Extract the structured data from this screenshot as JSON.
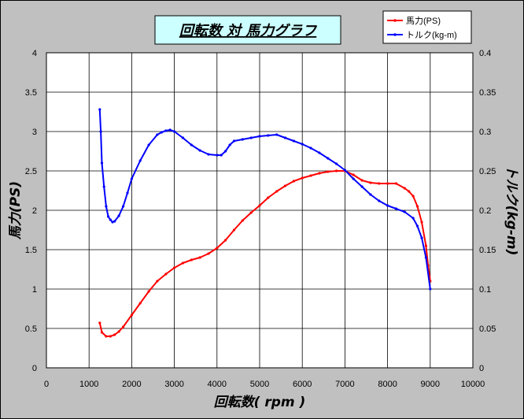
{
  "chart_data": {
    "type": "line",
    "title": "回転数 対 馬力グラフ",
    "xlabel": "回転数( rpm )",
    "ylabel": "馬力(PS)",
    "y2label": "トルク(kg-m)",
    "xlim": [
      0,
      10000
    ],
    "ylim": [
      0,
      4
    ],
    "y2lim": [
      0,
      0.4
    ],
    "xticks": [
      "0",
      "1000",
      "2000",
      "3000",
      "4000",
      "5000",
      "6000",
      "7000",
      "8000",
      "9000",
      "10000"
    ],
    "yticks": [
      "0",
      "0.5",
      "1",
      "1.5",
      "2",
      "2.5",
      "3",
      "3.5",
      "4"
    ],
    "y2ticks": [
      "0",
      "0.05",
      "0.1",
      "0.15",
      "0.2",
      "0.25",
      "0.3",
      "0.35",
      "0.4"
    ],
    "grid": true,
    "legend": "top-right",
    "series": [
      {
        "name": "馬力(PS)",
        "axis": "left",
        "color": "#ff0000",
        "x": [
          1250,
          1300,
          1400,
          1500,
          1600,
          1700,
          1800,
          2000,
          2200,
          2400,
          2600,
          2800,
          3000,
          3200,
          3400,
          3600,
          3800,
          4000,
          4200,
          4400,
          4600,
          4800,
          5000,
          5200,
          5400,
          5600,
          5800,
          6000,
          6200,
          6400,
          6600,
          6800,
          7000,
          7200,
          7400,
          7600,
          7800,
          8000,
          8200,
          8400,
          8500,
          8600,
          8700,
          8800,
          8900,
          8950,
          9000
        ],
        "y": [
          0.57,
          0.45,
          0.4,
          0.4,
          0.42,
          0.46,
          0.52,
          0.67,
          0.82,
          0.97,
          1.1,
          1.19,
          1.27,
          1.33,
          1.37,
          1.4,
          1.45,
          1.52,
          1.62,
          1.75,
          1.87,
          1.97,
          2.06,
          2.16,
          2.24,
          2.31,
          2.37,
          2.41,
          2.44,
          2.47,
          2.49,
          2.5,
          2.5,
          2.45,
          2.38,
          2.35,
          2.34,
          2.34,
          2.34,
          2.28,
          2.24,
          2.18,
          2.05,
          1.85,
          1.55,
          1.3,
          1.1
        ]
      },
      {
        "name": "トルク(kg-m)",
        "axis": "right",
        "color": "#0000ff",
        "x": [
          1250,
          1275,
          1300,
          1350,
          1400,
          1450,
          1500,
          1550,
          1600,
          1700,
          1800,
          1900,
          2000,
          2200,
          2400,
          2600,
          2700,
          2800,
          2900,
          3000,
          3200,
          3400,
          3600,
          3800,
          4000,
          4100,
          4200,
          4300,
          4400,
          4600,
          4800,
          5000,
          5200,
          5400,
          5600,
          5800,
          6000,
          6200,
          6400,
          6600,
          6800,
          7000,
          7200,
          7400,
          7600,
          7800,
          8000,
          8200,
          8400,
          8600,
          8700,
          8800,
          8900,
          9000
        ],
        "y": [
          0.328,
          0.3,
          0.26,
          0.23,
          0.205,
          0.192,
          0.188,
          0.185,
          0.186,
          0.193,
          0.205,
          0.222,
          0.24,
          0.263,
          0.283,
          0.296,
          0.299,
          0.301,
          0.302,
          0.3,
          0.292,
          0.283,
          0.276,
          0.271,
          0.27,
          0.27,
          0.275,
          0.283,
          0.288,
          0.29,
          0.292,
          0.294,
          0.295,
          0.296,
          0.292,
          0.288,
          0.284,
          0.279,
          0.273,
          0.266,
          0.259,
          0.251,
          0.24,
          0.23,
          0.22,
          0.212,
          0.206,
          0.202,
          0.198,
          0.19,
          0.18,
          0.165,
          0.14,
          0.1
        ]
      }
    ]
  }
}
